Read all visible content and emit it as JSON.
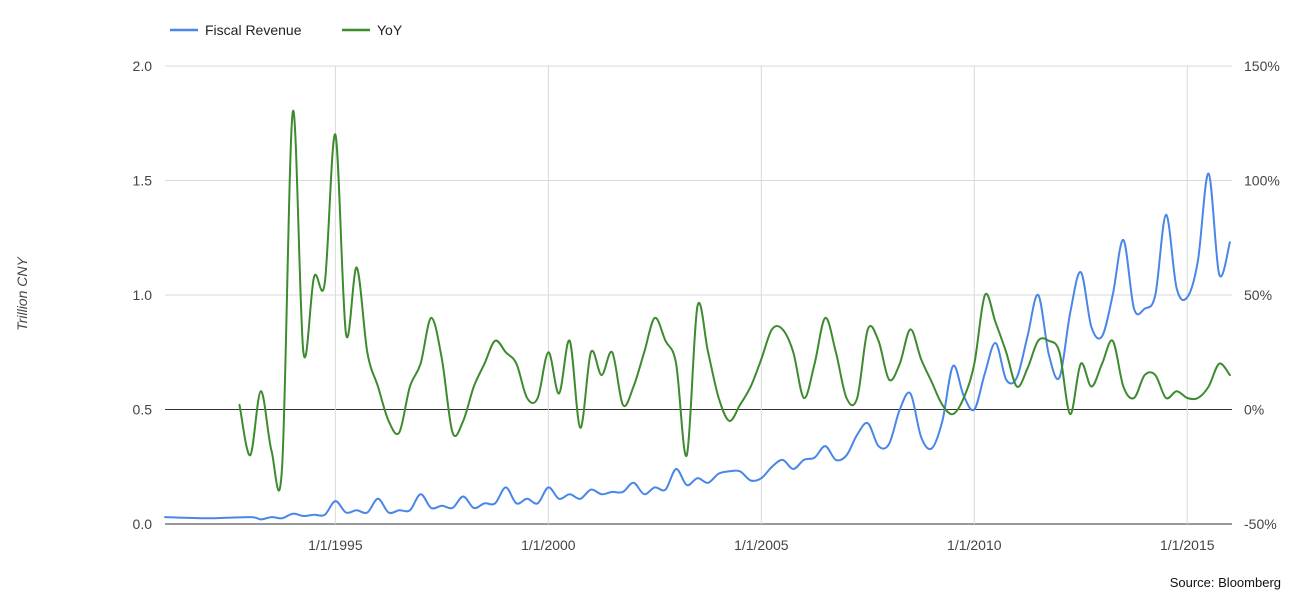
{
  "chart_data": {
    "type": "line",
    "title": "",
    "ylabel": "Trillion CNY",
    "source": "Source: Bloomberg",
    "legend_position": "top-left",
    "grid": true,
    "x_ticks": [
      "1/1/1995",
      "1/1/2000",
      "1/1/2005",
      "1/1/2010",
      "1/1/2015"
    ],
    "y_left": {
      "ylim": [
        0,
        2.0
      ],
      "ticks": [
        "0.0",
        "0.5",
        "1.0",
        "1.5",
        "2.0"
      ]
    },
    "y_right": {
      "ylim": [
        -50,
        150
      ],
      "ticks": [
        "-50%",
        "0%",
        "50%",
        "100%",
        "150%"
      ]
    },
    "series": [
      {
        "name": "Fiscal Revenue",
        "axis": "left",
        "color": "#4a86e8",
        "x": [
          "1991-01",
          "1992-01",
          "1993-01",
          "1993-04",
          "1993-07",
          "1993-10",
          "1994-01",
          "1994-04",
          "1994-07",
          "1994-10",
          "1995-01",
          "1995-04",
          "1995-07",
          "1995-10",
          "1996-01",
          "1996-04",
          "1996-07",
          "1996-10",
          "1997-01",
          "1997-04",
          "1997-07",
          "1997-10",
          "1998-01",
          "1998-04",
          "1998-07",
          "1998-10",
          "1999-01",
          "1999-04",
          "1999-07",
          "1999-10",
          "2000-01",
          "2000-04",
          "2000-07",
          "2000-10",
          "2001-01",
          "2001-04",
          "2001-07",
          "2001-10",
          "2002-01",
          "2002-04",
          "2002-07",
          "2002-10",
          "2003-01",
          "2003-04",
          "2003-07",
          "2003-10",
          "2004-01",
          "2004-04",
          "2004-07",
          "2004-10",
          "2005-01",
          "2005-04",
          "2005-07",
          "2005-10",
          "2006-01",
          "2006-04",
          "2006-07",
          "2006-10",
          "2007-01",
          "2007-04",
          "2007-07",
          "2007-10",
          "2008-01",
          "2008-04",
          "2008-07",
          "2008-10",
          "2009-01",
          "2009-04",
          "2009-07",
          "2009-10",
          "2010-01",
          "2010-04",
          "2010-07",
          "2010-10",
          "2011-01",
          "2011-04",
          "2011-07",
          "2011-10",
          "2012-01",
          "2012-04",
          "2012-07",
          "2012-10",
          "2013-01",
          "2013-04",
          "2013-07",
          "2013-10",
          "2014-01",
          "2014-04",
          "2014-07",
          "2014-10",
          "2015-01",
          "2015-04",
          "2015-07",
          "2015-10",
          "2016-01"
        ],
        "values": [
          0.03,
          0.025,
          0.03,
          0.02,
          0.03,
          0.025,
          0.045,
          0.035,
          0.04,
          0.04,
          0.1,
          0.05,
          0.06,
          0.05,
          0.11,
          0.05,
          0.06,
          0.06,
          0.13,
          0.07,
          0.08,
          0.07,
          0.12,
          0.07,
          0.09,
          0.09,
          0.16,
          0.09,
          0.11,
          0.09,
          0.16,
          0.11,
          0.13,
          0.11,
          0.15,
          0.13,
          0.14,
          0.14,
          0.18,
          0.13,
          0.16,
          0.15,
          0.24,
          0.17,
          0.2,
          0.18,
          0.22,
          0.23,
          0.23,
          0.19,
          0.2,
          0.25,
          0.28,
          0.24,
          0.28,
          0.29,
          0.34,
          0.28,
          0.3,
          0.39,
          0.44,
          0.34,
          0.35,
          0.5,
          0.57,
          0.38,
          0.33,
          0.45,
          0.69,
          0.56,
          0.5,
          0.66,
          0.79,
          0.63,
          0.64,
          0.82,
          1.0,
          0.74,
          0.64,
          0.92,
          1.1,
          0.86,
          0.82,
          1.0,
          1.24,
          0.94,
          0.94,
          1.0,
          1.35,
          1.03,
          0.99,
          1.15,
          1.53,
          1.09,
          1.23
        ]
      },
      {
        "name": "YoY",
        "axis": "right",
        "color": "#3d8b2e",
        "x": [
          "1992-10",
          "1993-01",
          "1993-04",
          "1993-07",
          "1993-10",
          "1994-01",
          "1994-04",
          "1994-07",
          "1994-10",
          "1995-01",
          "1995-04",
          "1995-07",
          "1995-10",
          "1996-01",
          "1996-04",
          "1996-07",
          "1996-10",
          "1997-01",
          "1997-04",
          "1997-07",
          "1997-10",
          "1998-01",
          "1998-04",
          "1998-07",
          "1998-10",
          "1999-01",
          "1999-04",
          "1999-07",
          "1999-10",
          "2000-01",
          "2000-04",
          "2000-07",
          "2000-10",
          "2001-01",
          "2001-04",
          "2001-07",
          "2001-10",
          "2002-01",
          "2002-04",
          "2002-07",
          "2002-10",
          "2003-01",
          "2003-04",
          "2003-07",
          "2003-10",
          "2004-01",
          "2004-04",
          "2004-07",
          "2004-10",
          "2005-01",
          "2005-04",
          "2005-07",
          "2005-10",
          "2006-01",
          "2006-04",
          "2006-07",
          "2006-10",
          "2007-01",
          "2007-04",
          "2007-07",
          "2007-10",
          "2008-01",
          "2008-04",
          "2008-07",
          "2008-10",
          "2009-01",
          "2009-04",
          "2009-07",
          "2009-10",
          "2010-01",
          "2010-04",
          "2010-07",
          "2010-10",
          "2011-01",
          "2011-04",
          "2011-07",
          "2011-10",
          "2012-01",
          "2012-04",
          "2012-07",
          "2012-10",
          "2013-01",
          "2013-04",
          "2013-07",
          "2013-10",
          "2014-01",
          "2014-04",
          "2014-07",
          "2014-10",
          "2015-01",
          "2015-04",
          "2015-07",
          "2015-10",
          "2016-01"
        ],
        "values": [
          2,
          -20,
          8,
          -18,
          -25,
          130,
          25,
          58,
          55,
          120,
          33,
          62,
          25,
          10,
          -5,
          -10,
          10,
          20,
          40,
          22,
          -10,
          -5,
          10,
          20,
          30,
          25,
          20,
          5,
          5,
          25,
          7,
          30,
          -8,
          25,
          15,
          25,
          2,
          10,
          25,
          40,
          30,
          20,
          -20,
          45,
          25,
          5,
          -5,
          2,
          10,
          22,
          35,
          35,
          25,
          5,
          20,
          40,
          25,
          5,
          5,
          35,
          30,
          13,
          20,
          35,
          22,
          12,
          2,
          -2,
          5,
          20,
          50,
          38,
          25,
          10,
          18,
          30,
          30,
          25,
          -2,
          20,
          10,
          20,
          30,
          10,
          5,
          15,
          15,
          5,
          8,
          5,
          5,
          10,
          20,
          15
        ]
      }
    ]
  },
  "legend": {
    "items": [
      {
        "label": "Fiscal Revenue",
        "color": "#4a86e8"
      },
      {
        "label": "YoY",
        "color": "#3d8b2e"
      }
    ]
  }
}
